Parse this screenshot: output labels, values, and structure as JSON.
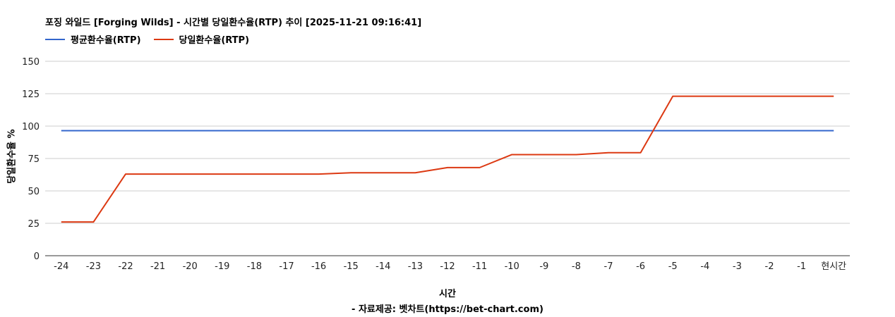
{
  "chart_data": {
    "type": "line",
    "title": "포징 와일드 [Forging Wilds] - 시간별 당일환수율(RTP) 추이 [2025-11-21 09:16:41]",
    "xlabel": "시간",
    "ylabel": "당일환수율 %",
    "credit": "- 자료제공: 벳차트(https://bet-chart.com)",
    "ylim": [
      0,
      150
    ],
    "yticks": [
      "0",
      "25",
      "50",
      "75",
      "100",
      "125",
      "150"
    ],
    "grid": true,
    "legend_position": "top-left",
    "categories": [
      "-24",
      "-23",
      "-22",
      "-21",
      "-20",
      "-19",
      "-18",
      "-17",
      "-16",
      "-15",
      "-14",
      "-13",
      "-12",
      "-11",
      "-10",
      "-9",
      "-8",
      "-7",
      "-6",
      "-5",
      "-4",
      "-3",
      "-2",
      "-1",
      "현시간"
    ],
    "series": [
      {
        "name": "평균환수율(RTP)",
        "color": "#3366cc",
        "values": [
          96.5,
          96.5,
          96.5,
          96.5,
          96.5,
          96.5,
          96.5,
          96.5,
          96.5,
          96.5,
          96.5,
          96.5,
          96.5,
          96.5,
          96.5,
          96.5,
          96.5,
          96.5,
          96.5,
          96.5,
          96.5,
          96.5,
          96.5,
          96.5,
          96.5
        ]
      },
      {
        "name": "당일환수율(RTP)",
        "color": "#dc3912",
        "values": [
          26,
          26,
          63,
          63,
          63,
          63,
          63,
          63,
          63,
          64,
          64,
          64,
          68,
          68,
          78,
          78,
          78,
          79.5,
          79.5,
          123,
          123,
          123,
          123,
          123,
          123
        ]
      }
    ]
  }
}
